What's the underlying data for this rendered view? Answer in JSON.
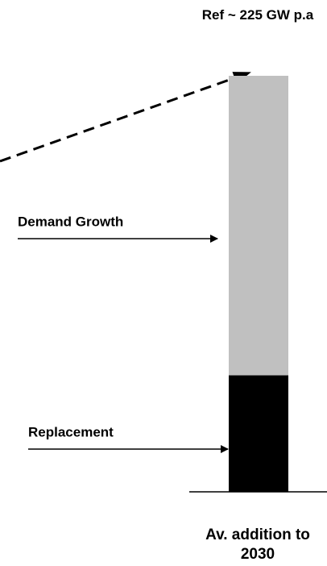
{
  "chart_data": {
    "type": "stacked_bar",
    "annotation": "Ref ~ 225 GW p.a",
    "categories": [
      "Av. addition to 2030"
    ],
    "series": [
      {
        "name": "Replacement",
        "color": "#000000",
        "values": [
          63
        ]
      },
      {
        "name": "Demand Growth",
        "color": "#c0c0c0",
        "values": [
          162
        ]
      }
    ]
  }
}
